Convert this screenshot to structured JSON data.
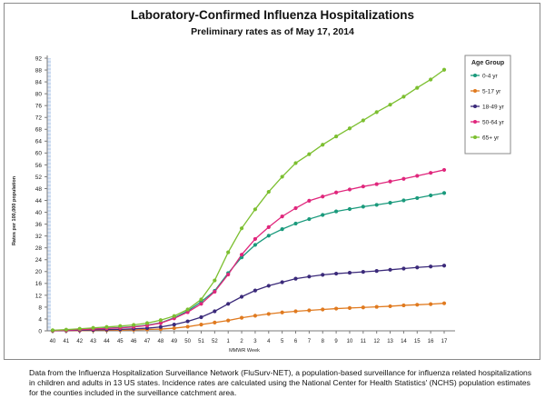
{
  "chart_data": {
    "type": "line",
    "title": "Laboratory-Confirmed Influenza Hospitalizations",
    "subtitle": "Preliminary rates as of May 17, 2014",
    "xlabel": "MMWR Week",
    "ylabel": "Rates per 100,000 population",
    "ylim": [
      0,
      92
    ],
    "yticks": [
      0,
      4,
      8,
      12,
      16,
      20,
      24,
      28,
      32,
      36,
      40,
      44,
      48,
      52,
      56,
      60,
      64,
      68,
      72,
      76,
      80,
      84,
      88,
      92
    ],
    "categories": [
      "40",
      "41",
      "42",
      "43",
      "44",
      "45",
      "46",
      "47",
      "48",
      "49",
      "50",
      "51",
      "52",
      "1",
      "2",
      "3",
      "4",
      "5",
      "6",
      "7",
      "8",
      "9",
      "10",
      "11",
      "12",
      "13",
      "14",
      "15",
      "16",
      "17"
    ],
    "legend_title": "Age Group",
    "legend_position": "right",
    "grid": "none",
    "series": [
      {
        "name": "0-4 yr",
        "color": "#1a9a7c",
        "values": [
          0.1,
          0.2,
          0.4,
          0.6,
          0.9,
          1.1,
          1.4,
          1.9,
          2.7,
          4.4,
          6.7,
          9.8,
          13.5,
          19.5,
          24.8,
          29.0,
          32.1,
          34.3,
          36.2,
          37.7,
          39.1,
          40.3,
          41.1,
          41.9,
          42.5,
          43.2,
          44.0,
          44.8,
          45.7,
          46.5
        ]
      },
      {
        "name": "5-17 yr",
        "color": "#e07a1f",
        "values": [
          0.0,
          0.05,
          0.1,
          0.15,
          0.2,
          0.25,
          0.35,
          0.45,
          0.6,
          0.9,
          1.4,
          2.1,
          2.8,
          3.5,
          4.4,
          5.1,
          5.7,
          6.2,
          6.6,
          6.9,
          7.2,
          7.5,
          7.7,
          7.9,
          8.1,
          8.3,
          8.6,
          8.8,
          9.0,
          9.3
        ]
      },
      {
        "name": "18-49 yr",
        "color": "#3b2a7a",
        "values": [
          0.05,
          0.1,
          0.2,
          0.3,
          0.4,
          0.5,
          0.7,
          0.9,
          1.3,
          2.1,
          3.2,
          4.6,
          6.6,
          9.1,
          11.5,
          13.6,
          15.2,
          16.4,
          17.6,
          18.3,
          18.9,
          19.3,
          19.6,
          19.9,
          20.2,
          20.6,
          21.0,
          21.4,
          21.7,
          22.0
        ]
      },
      {
        "name": "50-64 yr",
        "color": "#e0267c",
        "values": [
          0.1,
          0.2,
          0.4,
          0.6,
          0.8,
          1.0,
          1.3,
          1.8,
          2.6,
          4.2,
          6.3,
          9.1,
          13.2,
          19.0,
          25.7,
          31.0,
          35.0,
          38.6,
          41.4,
          43.9,
          45.3,
          46.7,
          47.7,
          48.7,
          49.5,
          50.4,
          51.3,
          52.3,
          53.3,
          54.3
        ]
      },
      {
        "name": "65+ yr",
        "color": "#7cbf30",
        "values": [
          0.2,
          0.4,
          0.7,
          1.0,
          1.3,
          1.6,
          2.0,
          2.6,
          3.6,
          5.0,
          7.2,
          10.6,
          17.0,
          26.5,
          34.6,
          41.0,
          46.9,
          52.0,
          56.6,
          59.6,
          62.8,
          65.6,
          68.3,
          71.0,
          73.8,
          76.3,
          79.0,
          82.0,
          84.8,
          88.1
        ]
      }
    ]
  },
  "caption": "Data from the Influenza  Hospitalization Surveillance Network (FluSurv-NET),  a population-based surveillance  for influenza related hospitalizations in children and adults in 13 US states. Incidence rates are calculated using the National Center for Health Statistics' (NCHS) population estimates for the counties included in the surveillance catchment area."
}
